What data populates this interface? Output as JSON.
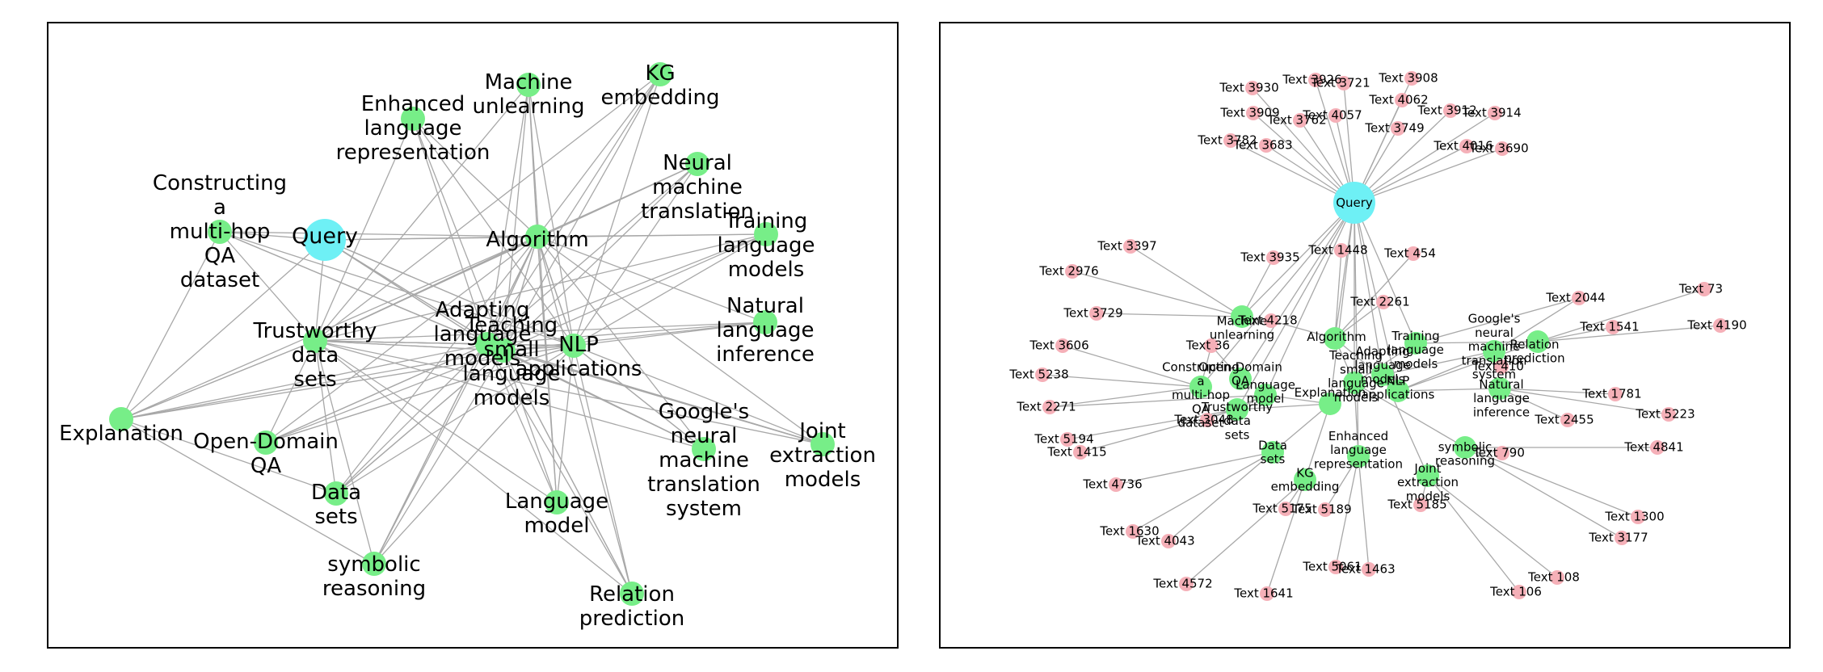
{
  "colors": {
    "query": "#6ef0f5",
    "concept": "#77ee88",
    "text": "#f5b0b8",
    "edge": "#a8a8a8"
  },
  "left_graph": {
    "nodes": [
      {
        "id": "Query",
        "label": "Query",
        "type": "query"
      },
      {
        "id": "Explanation",
        "label": "Explanation",
        "type": "concept"
      },
      {
        "id": "Constructing",
        "label": "Constructing a multi-hop QA dataset",
        "type": "concept"
      },
      {
        "id": "Enhanced",
        "label": "Enhanced language representation",
        "type": "concept"
      },
      {
        "id": "Unlearning",
        "label": "Machine unlearning",
        "type": "concept"
      },
      {
        "id": "KG",
        "label": "KG embedding",
        "type": "concept"
      },
      {
        "id": "NMT",
        "label": "Neural machine translation",
        "type": "concept"
      },
      {
        "id": "Training",
        "label": "Training language models",
        "type": "concept"
      },
      {
        "id": "Algorithm",
        "label": "Algorithm",
        "type": "concept"
      },
      {
        "id": "NLI",
        "label": "Natural language inference",
        "type": "concept"
      },
      {
        "id": "Trustworthy",
        "label": "Trustworthy data sets",
        "type": "concept"
      },
      {
        "id": "Adapting",
        "label": "Adapting language models",
        "type": "concept"
      },
      {
        "id": "Teaching",
        "label": "Teaching small language models",
        "type": "concept"
      },
      {
        "id": "NLP",
        "label": "NLP applications",
        "type": "concept"
      },
      {
        "id": "OpenQA",
        "label": "Open-Domain QA",
        "type": "concept"
      },
      {
        "id": "DataSets",
        "label": "Data sets",
        "type": "concept"
      },
      {
        "id": "Symbolic",
        "label": "symbolic reasoning",
        "type": "concept"
      },
      {
        "id": "LM",
        "label": "Language model",
        "type": "concept"
      },
      {
        "id": "GNMT",
        "label": "Google's neural machine translation system",
        "type": "concept"
      },
      {
        "id": "Joint",
        "label": "Joint extraction models",
        "type": "concept"
      },
      {
        "id": "Relation",
        "label": "Relation prediction",
        "type": "concept"
      }
    ]
  },
  "right_graph": {
    "nodes": [
      {
        "id": "Query",
        "label": "Query",
        "type": "query"
      },
      {
        "id": "MU",
        "label": "Machine unlearning",
        "type": "concept"
      },
      {
        "id": "Algo",
        "label": "Algorithm",
        "type": "concept"
      },
      {
        "id": "Train",
        "label": "Training language models",
        "type": "concept"
      },
      {
        "id": "Google",
        "label": "Google's neural machine translation system",
        "type": "concept"
      },
      {
        "id": "Rel",
        "label": "Relation prediction",
        "type": "concept"
      },
      {
        "id": "OpenQA",
        "label": "Open-Domain QA",
        "type": "concept"
      },
      {
        "id": "Construct",
        "label": "Constructing a multi-hop QA dataset",
        "type": "concept"
      },
      {
        "id": "Teach",
        "label": "Teaching small language models",
        "type": "concept"
      },
      {
        "id": "Adapt",
        "label": "Adapting language models",
        "type": "concept"
      },
      {
        "id": "NLP",
        "label": "NLP applications",
        "type": "concept"
      },
      {
        "id": "LM",
        "label": "Language model",
        "type": "concept"
      },
      {
        "id": "Trust",
        "label": "Trustworthy data sets",
        "type": "concept"
      },
      {
        "id": "Expl",
        "label": "Explanation",
        "type": "concept"
      },
      {
        "id": "NLI",
        "label": "Natural language inference",
        "type": "concept"
      },
      {
        "id": "Text410",
        "label": "Text 410",
        "type": "text"
      },
      {
        "id": "DS",
        "label": "Data sets",
        "type": "concept"
      },
      {
        "id": "Enh",
        "label": "Enhanced language representation",
        "type": "concept"
      },
      {
        "id": "Sym",
        "label": "symbolic reasoning",
        "type": "concept"
      },
      {
        "id": "Joint",
        "label": "Joint extraction models",
        "type": "concept"
      },
      {
        "id": "KG",
        "label": "KG embedding",
        "type": "concept"
      },
      {
        "id": "T3926",
        "label": "Text 3926",
        "type": "text"
      },
      {
        "id": "T3721",
        "label": "Text 3721",
        "type": "text"
      },
      {
        "id": "T3908",
        "label": "Text 3908",
        "type": "text"
      },
      {
        "id": "T3930",
        "label": "Text 3930",
        "type": "text"
      },
      {
        "id": "T4062",
        "label": "Text 4062",
        "type": "text"
      },
      {
        "id": "T3909",
        "label": "Text 3909",
        "type": "text"
      },
      {
        "id": "T4057",
        "label": "Text 4057",
        "type": "text"
      },
      {
        "id": "T3762",
        "label": "Text 3762",
        "type": "text"
      },
      {
        "id": "T3912",
        "label": "Text 3912",
        "type": "text"
      },
      {
        "id": "T3914",
        "label": "Text 3914",
        "type": "text"
      },
      {
        "id": "T3749",
        "label": "Text 3749",
        "type": "text"
      },
      {
        "id": "T3782",
        "label": "Text 3782",
        "type": "text"
      },
      {
        "id": "T3683",
        "label": "Text 3683",
        "type": "text"
      },
      {
        "id": "T4016",
        "label": "Text 4016",
        "type": "text"
      },
      {
        "id": "T3690",
        "label": "Text 3690",
        "type": "text"
      },
      {
        "id": "T3397",
        "label": "Text 3397",
        "type": "text"
      },
      {
        "id": "T3935",
        "label": "Text 3935",
        "type": "text"
      },
      {
        "id": "T1448",
        "label": "Text 1448",
        "type": "text"
      },
      {
        "id": "T454",
        "label": "Text 454",
        "type": "text"
      },
      {
        "id": "T2976",
        "label": "Text 2976",
        "type": "text"
      },
      {
        "id": "T73",
        "label": "Text 73",
        "type": "text"
      },
      {
        "id": "T2261",
        "label": "Text 2261",
        "type": "text"
      },
      {
        "id": "T2044",
        "label": "Text 2044",
        "type": "text"
      },
      {
        "id": "T3729",
        "label": "Text 3729",
        "type": "text"
      },
      {
        "id": "T4218",
        "label": "Text 4218",
        "type": "text"
      },
      {
        "id": "T1541",
        "label": "Text 1541",
        "type": "text"
      },
      {
        "id": "T4190",
        "label": "Text 4190",
        "type": "text"
      },
      {
        "id": "T3606",
        "label": "Text 3606",
        "type": "text"
      },
      {
        "id": "T36",
        "label": "Text 36",
        "type": "text"
      },
      {
        "id": "T5238",
        "label": "Text 5238",
        "type": "text"
      },
      {
        "id": "T2271",
        "label": "Text 2271",
        "type": "text"
      },
      {
        "id": "T1781",
        "label": "Text 1781",
        "type": "text"
      },
      {
        "id": "T3048",
        "label": "Text 3048",
        "type": "text"
      },
      {
        "id": "T2455",
        "label": "Text 2455",
        "type": "text"
      },
      {
        "id": "T5223",
        "label": "Text 5223",
        "type": "text"
      },
      {
        "id": "T5194",
        "label": "Text 5194",
        "type": "text"
      },
      {
        "id": "T1415",
        "label": "Text 1415",
        "type": "text"
      },
      {
        "id": "T790",
        "label": "Text 790",
        "type": "text"
      },
      {
        "id": "T4841",
        "label": "Text 4841",
        "type": "text"
      },
      {
        "id": "T4736",
        "label": "Text 4736",
        "type": "text"
      },
      {
        "id": "T5175",
        "label": "Text 5175",
        "type": "text"
      },
      {
        "id": "T5189",
        "label": "Text 5189",
        "type": "text"
      },
      {
        "id": "T5185",
        "label": "Text 5185",
        "type": "text"
      },
      {
        "id": "T1300",
        "label": "Text 1300",
        "type": "text"
      },
      {
        "id": "T1630",
        "label": "Text 1630",
        "type": "text"
      },
      {
        "id": "T4043",
        "label": "Text 4043",
        "type": "text"
      },
      {
        "id": "T3177",
        "label": "Text 3177",
        "type": "text"
      },
      {
        "id": "T5061",
        "label": "Text 5061",
        "type": "text"
      },
      {
        "id": "T1463",
        "label": "Text 1463",
        "type": "text"
      },
      {
        "id": "T108",
        "label": "Text 108",
        "type": "text"
      },
      {
        "id": "T4572",
        "label": "Text 4572",
        "type": "text"
      },
      {
        "id": "T1641",
        "label": "Text 1641",
        "type": "text"
      },
      {
        "id": "T106",
        "label": "Text 106",
        "type": "text"
      }
    ]
  }
}
